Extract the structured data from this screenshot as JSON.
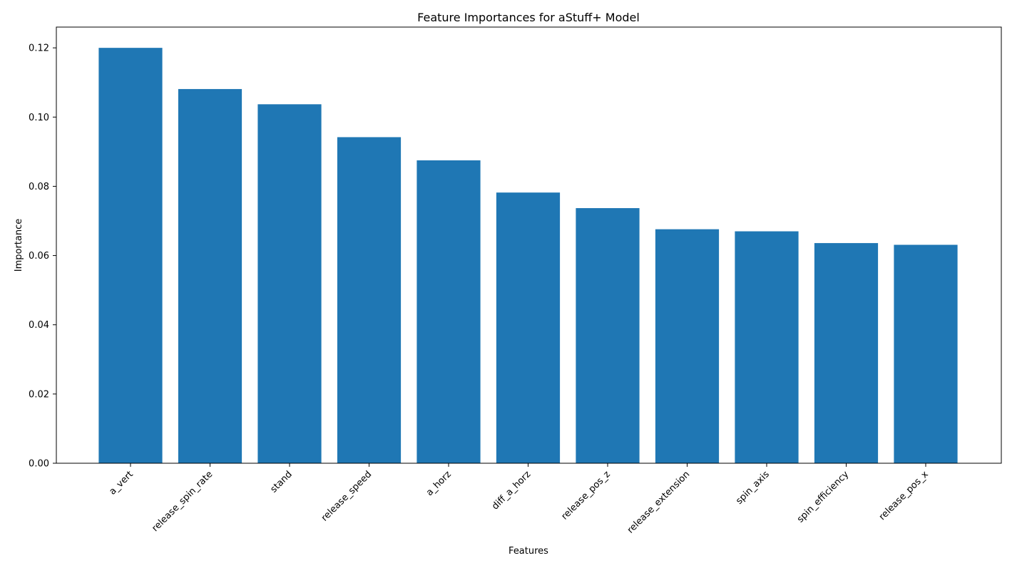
{
  "chart_data": {
    "type": "bar",
    "title": "Feature Importances for aStuff+ Model",
    "xlabel": "Features",
    "ylabel": "Importance",
    "ylim": [
      0,
      0.126
    ],
    "yticks": [
      "0.00",
      "0.02",
      "0.04",
      "0.06",
      "0.08",
      "0.10",
      "0.12"
    ],
    "categories": [
      "a_vert",
      "release_spin_rate",
      "stand",
      "release_speed",
      "a_horz",
      "diff_a_horz",
      "release_pos_z",
      "release_extension",
      "spin_axis",
      "spin_efficiency",
      "release_pos_x"
    ],
    "values": [
      0.12,
      0.1081,
      0.1037,
      0.0942,
      0.0875,
      0.0782,
      0.0737,
      0.0676,
      0.067,
      0.0636,
      0.0631
    ],
    "bar_color": "#1f77b4",
    "grid": false,
    "legend": "none"
  }
}
